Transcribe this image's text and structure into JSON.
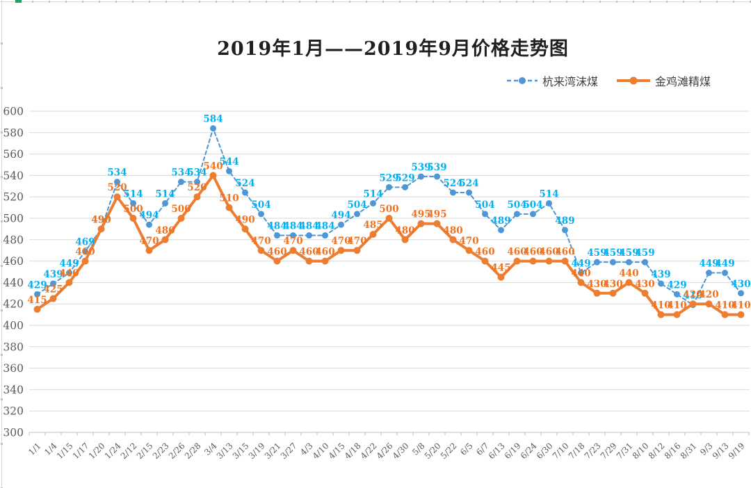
{
  "title": "2019年1月——2019年9月价格走势图",
  "chart_data": {
    "type": "line",
    "title": "2019年1月——2019年9月价格走势图",
    "categories": [
      "1/1",
      "1/4",
      "1/15",
      "1/17",
      "1/20",
      "1/24",
      "2/12",
      "2/15",
      "2/23",
      "2/26",
      "2/28",
      "3/4",
      "3/13",
      "3/15",
      "3/19",
      "3/21",
      "3/27",
      "4/3",
      "4/10",
      "4/15",
      "4/18",
      "4/22",
      "4/26",
      "4/30",
      "5/8",
      "5/20",
      "5/22",
      "6/5",
      "6/7",
      "6/13",
      "6/19",
      "6/24",
      "6/30",
      "7/10",
      "7/18",
      "7/23",
      "7/29",
      "7/31",
      "8/10",
      "8/12",
      "8/16",
      "8/31",
      "9/3",
      "9/13",
      "9/19"
    ],
    "series": [
      {
        "name": "杭来湾沫煤",
        "style": "dashed",
        "line_color": "#4e96d6",
        "marker_color": "#4e96d6",
        "label_color": "#00b0f0",
        "values": [
          429,
          439,
          449,
          469,
          490,
          534,
          514,
          494,
          514,
          534,
          534,
          584,
          544,
          524,
          504,
          484,
          484,
          484,
          484,
          494,
          504,
          514,
          529,
          529,
          539,
          539,
          524,
          524,
          504,
          489,
          504,
          504,
          514,
          489,
          449,
          459,
          459,
          459,
          459,
          439,
          429,
          419,
          449,
          449,
          430
        ]
      },
      {
        "name": "金鸡滩精煤",
        "style": "solid",
        "line_color": "#ed7d31",
        "marker_color": "#ed7d31",
        "label_color": "#ed7220",
        "values": [
          415,
          425,
          440,
          460,
          490,
          520,
          500,
          470,
          480,
          500,
          520,
          540,
          510,
          490,
          470,
          460,
          470,
          460,
          460,
          470,
          470,
          485,
          500,
          480,
          495,
          495,
          480,
          470,
          460,
          445,
          460,
          460,
          460,
          460,
          440,
          430,
          430,
          440,
          430,
          410,
          410,
          420,
          420,
          410,
          410
        ]
      }
    ],
    "ylim": [
      300,
      600
    ],
    "yticks": [
      600,
      580,
      560,
      540,
      520,
      500,
      480,
      460,
      440,
      420,
      400,
      380,
      360,
      340,
      320,
      300
    ],
    "grid": true,
    "legend_position": "top-right",
    "data_labels": true,
    "axis_text_color": "#595959",
    "gridline_color": "#d9d9d9",
    "axis_line_color": "#bfbfbf"
  }
}
